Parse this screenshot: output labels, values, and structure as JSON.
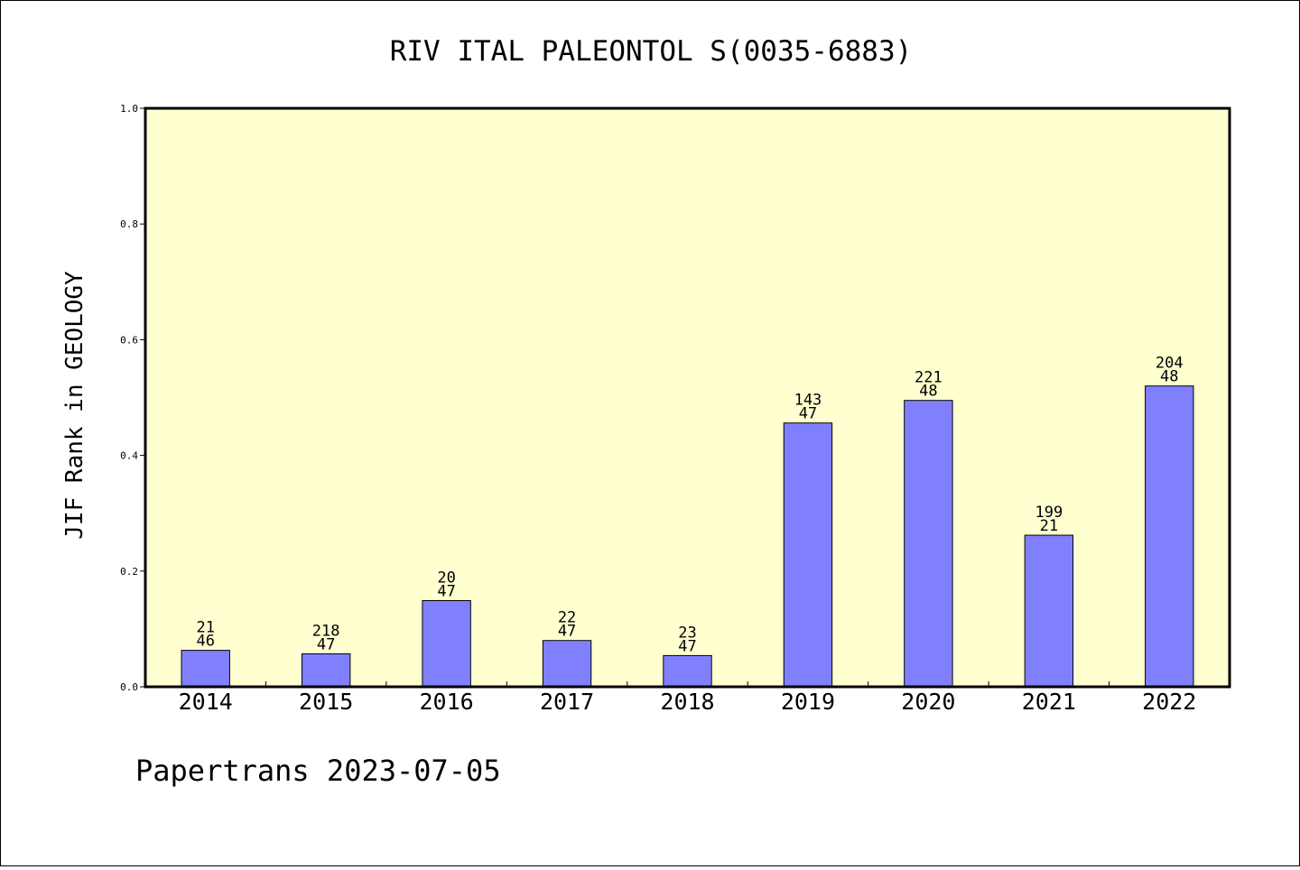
{
  "chart_data": {
    "type": "bar",
    "title": "RIV ITAL PALEONTOL S(0035-6883)",
    "xlabel": "",
    "ylabel": "JIF Rank in GEOLOGY",
    "ylim": [
      0,
      1.0
    ],
    "yticks": [
      "0.0",
      "0.2",
      "0.4",
      "0.6",
      "0.8",
      "1.0"
    ],
    "grid": false,
    "categories": [
      "2014",
      "2015",
      "2016",
      "2017",
      "2018",
      "2019",
      "2020",
      "2021",
      "2022"
    ],
    "values": [
      0.063,
      0.057,
      0.149,
      0.08,
      0.054,
      0.456,
      0.495,
      0.262,
      0.52
    ],
    "rank_labels": [
      "21",
      "218",
      "20",
      "22",
      "23",
      "143",
      "221",
      "199",
      "204"
    ],
    "total_labels": [
      "46",
      "47",
      "47",
      "47",
      "47",
      "47",
      "48",
      "21",
      "48"
    ],
    "bar_color": "#8080ff",
    "plot_background": "#ffffd0"
  },
  "footer": "Papertrans 2023-07-05"
}
